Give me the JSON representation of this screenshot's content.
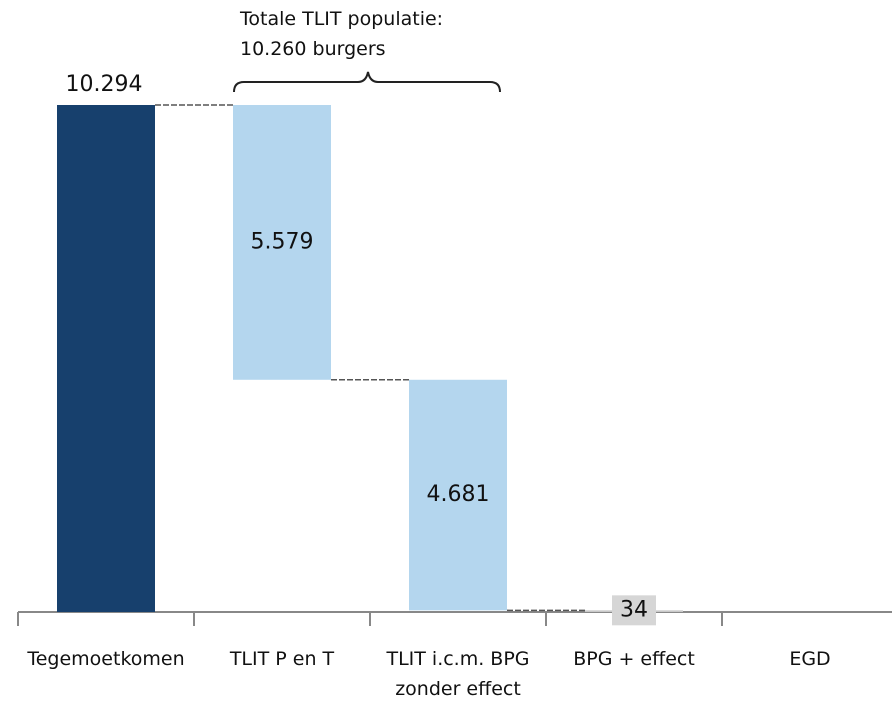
{
  "chart_data": {
    "type": "waterfall",
    "annotation": "Totale TLIT populatie: 10.260 burgers",
    "categories": [
      "Tegemoetkomen",
      "TLIT P en T",
      "TLIT i.c.m. BPG zonder effect",
      "BPG + effect",
      "EGD"
    ],
    "values": [
      10294,
      5579,
      4681,
      34,
      null
    ],
    "value_labels": [
      "10.294",
      "5.579",
      "4.681",
      "34",
      null
    ],
    "colors": [
      "#17406d",
      "#b4d6ee",
      "#b4d6ee",
      "#c9c9c9",
      "#c9c9c9"
    ],
    "ylim": [
      0,
      10294
    ]
  }
}
